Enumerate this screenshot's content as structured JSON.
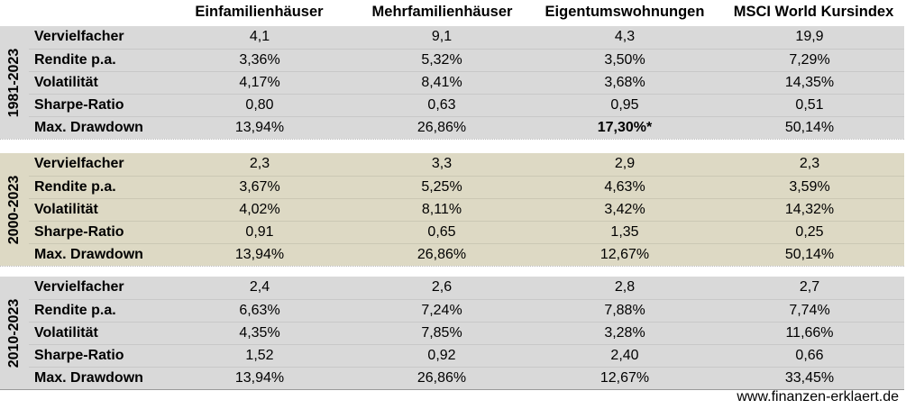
{
  "columns": [
    "Einfamilienhäuser",
    "Mehrfamilienhäuser",
    "Eigentumswohnungen",
    "MSCI World Kursindex"
  ],
  "blocks": [
    {
      "period": "1981-2023",
      "bg": "#d9d9d9",
      "rows": [
        {
          "label": "Vervielfacher",
          "values": [
            "4,1",
            "9,1",
            "4,3",
            "19,9"
          ]
        },
        {
          "label": "Rendite p.a.",
          "values": [
            "3,36%",
            "5,32%",
            "3,50%",
            "7,29%"
          ]
        },
        {
          "label": "Volatilität",
          "values": [
            "4,17%",
            "8,41%",
            "3,68%",
            "14,35%"
          ]
        },
        {
          "label": "Sharpe-Ratio",
          "values": [
            "0,80",
            "0,63",
            "0,95",
            "0,51"
          ]
        },
        {
          "label": "Max. Drawdown",
          "values": [
            "13,94%",
            "26,86%",
            "17,30%*",
            "50,14%"
          ]
        }
      ]
    },
    {
      "period": "2000-2023",
      "bg": "#ddd9c4",
      "rows": [
        {
          "label": "Vervielfacher",
          "values": [
            "2,3",
            "3,3",
            "2,9",
            "2,3"
          ]
        },
        {
          "label": "Rendite p.a.",
          "values": [
            "3,67%",
            "5,25%",
            "4,63%",
            "3,59%"
          ]
        },
        {
          "label": "Volatilität",
          "values": [
            "4,02%",
            "8,11%",
            "3,42%",
            "14,32%"
          ]
        },
        {
          "label": "Sharpe-Ratio",
          "values": [
            "0,91",
            "0,65",
            "1,35",
            "0,25"
          ]
        },
        {
          "label": "Max. Drawdown",
          "values": [
            "13,94%",
            "26,86%",
            "12,67%",
            "50,14%"
          ]
        }
      ]
    },
    {
      "period": "2010-2023",
      "bg": "#d9d9d9",
      "rows": [
        {
          "label": "Vervielfacher",
          "values": [
            "2,4",
            "2,6",
            "2,8",
            "2,7"
          ]
        },
        {
          "label": "Rendite p.a.",
          "values": [
            "6,63%",
            "7,24%",
            "7,88%",
            "7,74%"
          ]
        },
        {
          "label": "Volatilität",
          "values": [
            "4,35%",
            "7,85%",
            "3,28%",
            "11,66%"
          ]
        },
        {
          "label": "Sharpe-Ratio",
          "values": [
            "1,52",
            "0,92",
            "2,40",
            "0,66"
          ]
        },
        {
          "label": "Max. Drawdown",
          "values": [
            "13,94%",
            "26,86%",
            "12,67%",
            "33,45%"
          ]
        }
      ]
    }
  ],
  "footer": {
    "website": "www.finanzen-erklaert.de"
  }
}
